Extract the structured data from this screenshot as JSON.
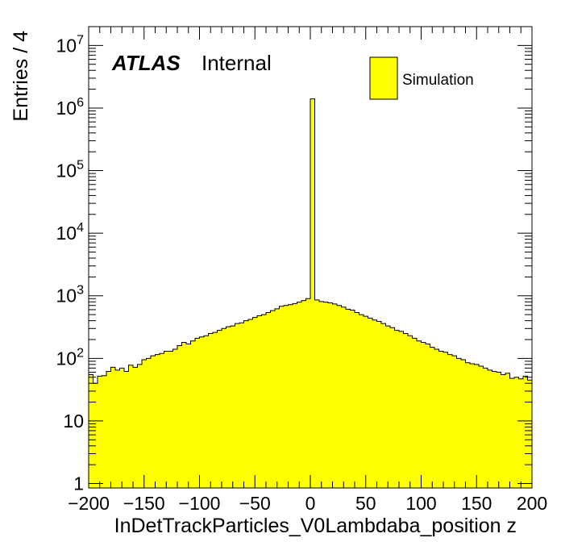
{
  "chart_data": {
    "type": "bar",
    "histogram": true,
    "fill_color": "#ffff00",
    "edge_color": "#000000",
    "xlabel": "InDetTrackParticles_V0Lambdaba_position z",
    "ylabel": "Entries / 4",
    "xlim": [
      -200,
      200
    ],
    "ylim": [
      0.85,
      20000000
    ],
    "log_y": true,
    "x_ticks": [
      "−200",
      "−150",
      "−100",
      "−50",
      "0",
      "50",
      "100",
      "150",
      "200"
    ],
    "bin_width": 4,
    "x": [
      -198,
      -194,
      -190,
      -186,
      -182,
      -178,
      -174,
      -170,
      -166,
      -162,
      -158,
      -154,
      -150,
      -146,
      -142,
      -138,
      -134,
      -130,
      -126,
      -122,
      -118,
      -114,
      -110,
      -106,
      -102,
      -98,
      -94,
      -90,
      -86,
      -82,
      -78,
      -74,
      -70,
      -66,
      -62,
      -58,
      -54,
      -50,
      -46,
      -42,
      -38,
      -34,
      -30,
      -26,
      -22,
      -18,
      -14,
      -10,
      -6,
      -2,
      2,
      6,
      10,
      14,
      18,
      22,
      26,
      30,
      34,
      38,
      42,
      46,
      50,
      54,
      58,
      62,
      66,
      70,
      74,
      78,
      82,
      86,
      90,
      94,
      98,
      102,
      106,
      110,
      114,
      118,
      122,
      126,
      130,
      134,
      138,
      142,
      146,
      150,
      154,
      158,
      162,
      166,
      170,
      174,
      178,
      182,
      186,
      190,
      194,
      198
    ],
    "values": [
      55,
      40,
      52,
      53,
      62,
      72,
      65,
      70,
      62,
      78,
      72,
      80,
      95,
      100,
      110,
      115,
      120,
      130,
      130,
      140,
      160,
      180,
      170,
      190,
      210,
      220,
      230,
      250,
      260,
      280,
      300,
      320,
      330,
      360,
      370,
      400,
      420,
      450,
      480,
      500,
      540,
      580,
      620,
      680,
      700,
      720,
      750,
      790,
      840,
      900,
      1400000,
      860,
      810,
      790,
      770,
      740,
      700,
      660,
      610,
      590,
      540,
      500,
      470,
      440,
      410,
      390,
      360,
      330,
      310,
      280,
      270,
      250,
      230,
      210,
      190,
      180,
      170,
      150,
      140,
      130,
      125,
      115,
      110,
      100,
      95,
      85,
      82,
      80,
      75,
      70,
      65,
      62,
      60,
      55,
      58,
      48,
      50,
      47,
      52,
      45
    ],
    "legend": [
      {
        "label": "Simulation",
        "color": "#ffff00"
      }
    ],
    "legend_position": "top-right",
    "annotations": {
      "atlas": "ATLAS",
      "internal": "Internal"
    }
  }
}
